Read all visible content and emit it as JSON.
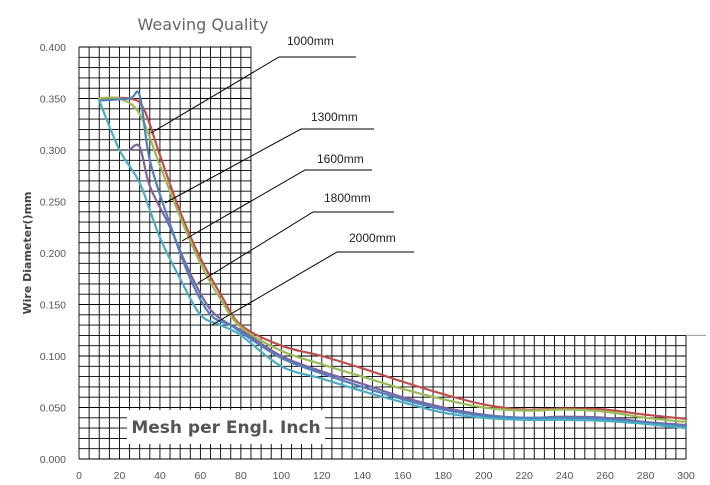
{
  "chart_data": {
    "type": "line",
    "title": "Weaving Quality",
    "ylabel": "Wire Diameter()mm",
    "xlabel": "Mesh per Engl. Inch",
    "xlim": [
      0,
      300
    ],
    "ylim": [
      0,
      0.4
    ],
    "x_ticks": [
      "0",
      "20",
      "40",
      "60",
      "80",
      "100",
      "120",
      "140",
      "160",
      "180",
      "200",
      "220",
      "240",
      "260",
      "280",
      "300"
    ],
    "y_ticks": [
      "0.000",
      "0.050",
      "0.100",
      "0.150",
      "0.200",
      "0.250",
      "0.300",
      "0.350",
      "0.400"
    ],
    "grid": true,
    "annotations": [
      "1000mm",
      "1300mm",
      "1600mm",
      "1800mm",
      "2000mm"
    ],
    "series": [
      {
        "color": "#c0504d",
        "points": [
          [
            10,
            0.35
          ],
          [
            25,
            0.35
          ],
          [
            32,
            0.34
          ],
          [
            40,
            0.295
          ],
          [
            50,
            0.24
          ],
          [
            60,
            0.195
          ],
          [
            70,
            0.16
          ],
          [
            80,
            0.13
          ],
          [
            100,
            0.11
          ],
          [
            120,
            0.1
          ],
          [
            140,
            0.088
          ],
          [
            160,
            0.075
          ],
          [
            180,
            0.063
          ],
          [
            200,
            0.053
          ],
          [
            220,
            0.048
          ],
          [
            240,
            0.049
          ],
          [
            260,
            0.048
          ],
          [
            280,
            0.043
          ],
          [
            300,
            0.039
          ]
        ]
      },
      {
        "color": "#9bbb59",
        "points": [
          [
            10,
            0.35
          ],
          [
            20,
            0.35
          ],
          [
            30,
            0.335
          ],
          [
            40,
            0.285
          ],
          [
            50,
            0.235
          ],
          [
            60,
            0.19
          ],
          [
            70,
            0.155
          ],
          [
            80,
            0.128
          ],
          [
            100,
            0.105
          ],
          [
            120,
            0.092
          ],
          [
            140,
            0.08
          ],
          [
            160,
            0.068
          ],
          [
            180,
            0.058
          ],
          [
            200,
            0.05
          ],
          [
            220,
            0.047
          ],
          [
            240,
            0.048
          ],
          [
            260,
            0.046
          ],
          [
            280,
            0.04
          ],
          [
            300,
            0.036
          ]
        ]
      },
      {
        "color": "#8064a2",
        "points": [
          [
            25,
            0.3
          ],
          [
            30,
            0.303
          ],
          [
            35,
            0.265
          ],
          [
            45,
            0.225
          ],
          [
            55,
            0.18
          ],
          [
            65,
            0.145
          ],
          [
            75,
            0.13
          ],
          [
            80,
            0.125
          ],
          [
            100,
            0.1
          ],
          [
            120,
            0.085
          ],
          [
            140,
            0.073
          ],
          [
            160,
            0.06
          ],
          [
            180,
            0.05
          ],
          [
            200,
            0.043
          ],
          [
            220,
            0.04
          ],
          [
            240,
            0.041
          ],
          [
            260,
            0.04
          ],
          [
            280,
            0.036
          ],
          [
            300,
            0.033
          ]
        ]
      },
      {
        "color": "#4f81bd",
        "points": [
          [
            10,
            0.348
          ],
          [
            25,
            0.35
          ],
          [
            30,
            0.353
          ],
          [
            35,
            0.29
          ],
          [
            45,
            0.228
          ],
          [
            55,
            0.175
          ],
          [
            65,
            0.14
          ],
          [
            75,
            0.13
          ],
          [
            80,
            0.123
          ],
          [
            100,
            0.098
          ],
          [
            120,
            0.083
          ],
          [
            140,
            0.07
          ],
          [
            160,
            0.058
          ],
          [
            180,
            0.048
          ],
          [
            200,
            0.042
          ],
          [
            220,
            0.04
          ],
          [
            240,
            0.04
          ],
          [
            260,
            0.039
          ],
          [
            280,
            0.035
          ],
          [
            300,
            0.032
          ]
        ]
      },
      {
        "color": "#4bacc6",
        "points": [
          [
            10,
            0.348
          ],
          [
            20,
            0.3
          ],
          [
            30,
            0.268
          ],
          [
            40,
            0.215
          ],
          [
            50,
            0.175
          ],
          [
            60,
            0.14
          ],
          [
            70,
            0.13
          ],
          [
            80,
            0.12
          ],
          [
            100,
            0.09
          ],
          [
            120,
            0.078
          ],
          [
            140,
            0.066
          ],
          [
            160,
            0.055
          ],
          [
            180,
            0.045
          ],
          [
            200,
            0.04
          ],
          [
            220,
            0.038
          ],
          [
            240,
            0.038
          ],
          [
            260,
            0.037
          ],
          [
            280,
            0.034
          ],
          [
            300,
            0.03
          ]
        ]
      }
    ]
  }
}
